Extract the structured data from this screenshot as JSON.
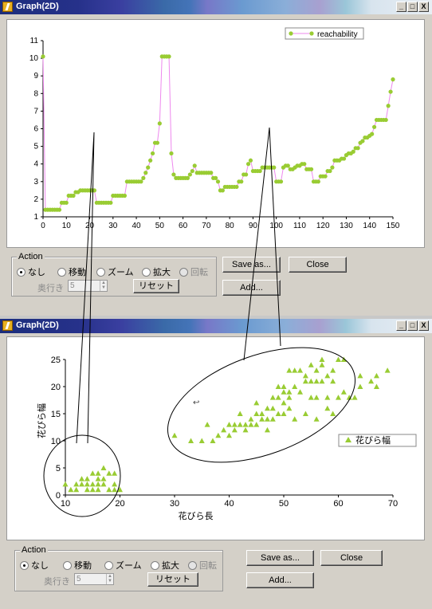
{
  "window1": {
    "title": "Graph(2D)",
    "title_buttons": [
      "_",
      "□",
      "X"
    ],
    "action": {
      "legend": "Action",
      "options": [
        "なし",
        "移動",
        "ズーム",
        "拡大",
        "回転"
      ],
      "selected": 0,
      "disabled": [
        4
      ],
      "depth_label": "奥行き",
      "depth_value": "5",
      "reset_label": "リセット"
    },
    "buttons": {
      "save": "Save as...",
      "close": "Close",
      "add": "Add..."
    }
  },
  "window2": {
    "title": "Graph(2D)",
    "title_buttons": [
      "_",
      "□",
      "X"
    ],
    "action": {
      "legend": "Action",
      "options": [
        "なし",
        "移動",
        "ズーム",
        "拡大",
        "回転"
      ],
      "selected": 0,
      "disabled": [
        4
      ],
      "depth_label": "奥行き",
      "depth_value": "5",
      "reset_label": "リセット"
    },
    "buttons": {
      "save": "Save as...",
      "close": "Close",
      "add": "Add..."
    }
  },
  "chart_data": [
    {
      "type": "line",
      "title": "",
      "xlabel": "",
      "ylabel": "",
      "xlim": [
        0,
        150
      ],
      "ylim": [
        1,
        11
      ],
      "xticks": [
        0,
        10,
        20,
        30,
        40,
        50,
        60,
        70,
        80,
        90,
        100,
        110,
        120,
        130,
        140,
        150
      ],
      "yticks": [
        1,
        2,
        3,
        4,
        5,
        6,
        7,
        8,
        9,
        10,
        11
      ],
      "legend": "top-right",
      "series": [
        {
          "name": "reachability",
          "color": "#99cc33",
          "line_color": "#ee88ee",
          "values": [
            10.1,
            1.4,
            1.4,
            1.4,
            1.4,
            1.4,
            1.4,
            1.4,
            1.8,
            1.8,
            1.8,
            2.2,
            2.2,
            2.2,
            2.4,
            2.4,
            2.5,
            2.5,
            2.5,
            2.5,
            2.5,
            2.5,
            2.5,
            1.8,
            1.8,
            1.8,
            1.8,
            1.8,
            1.8,
            1.8,
            2.2,
            2.2,
            2.2,
            2.2,
            2.2,
            2.2,
            3.0,
            3.0,
            3.0,
            3.0,
            3.0,
            3.0,
            3.0,
            3.2,
            3.5,
            3.8,
            4.2,
            4.6,
            5.2,
            5.2,
            6.3,
            10.1,
            10.1,
            10.1,
            10.1,
            4.6,
            3.4,
            3.2,
            3.2,
            3.2,
            3.2,
            3.2,
            3.2,
            3.4,
            3.6,
            3.9,
            3.5,
            3.5,
            3.5,
            3.5,
            3.5,
            3.5,
            3.5,
            3.2,
            3.2,
            3.0,
            2.5,
            2.5,
            2.7,
            2.7,
            2.7,
            2.7,
            2.7,
            2.7,
            3.0,
            3.0,
            3.4,
            3.4,
            4.0,
            4.2,
            3.6,
            3.6,
            3.6,
            3.6,
            3.8,
            3.8,
            3.8,
            3.8,
            3.8,
            3.8,
            3.0,
            3.0,
            3.0,
            3.8,
            3.9,
            3.9,
            3.7,
            3.7,
            3.8,
            3.9,
            3.9,
            4.0,
            4.0,
            3.7,
            3.7,
            3.7,
            3.0,
            3.0,
            3.0,
            3.3,
            3.3,
            3.3,
            3.6,
            3.6,
            3.8,
            4.2,
            4.2,
            4.2,
            4.3,
            4.3,
            4.5,
            4.6,
            4.6,
            4.7,
            4.9,
            4.9,
            5.2,
            5.3,
            5.5,
            5.5,
            5.6,
            5.7,
            6.1,
            6.5,
            6.5,
            6.5,
            6.5,
            6.5,
            7.3,
            8.1,
            8.8
          ]
        }
      ]
    },
    {
      "type": "scatter",
      "title": "",
      "xlabel": "花びら長",
      "ylabel": "花びら幅",
      "xlim": [
        10,
        70
      ],
      "ylim": [
        0,
        25
      ],
      "xticks": [
        10,
        20,
        30,
        40,
        50,
        60,
        70
      ],
      "yticks": [
        0,
        5,
        10,
        15,
        20,
        25
      ],
      "legend": "right",
      "series": [
        {
          "name": "花びら幅",
          "color": "#99cc33",
          "points": [
            [
              10,
              2
            ],
            [
              11,
              1
            ],
            [
              12,
              2
            ],
            [
              12,
              1
            ],
            [
              13,
              2
            ],
            [
              13,
              3
            ],
            [
              14,
              2
            ],
            [
              14,
              1
            ],
            [
              14,
              3
            ],
            [
              15,
              2
            ],
            [
              15,
              4
            ],
            [
              15,
              1
            ],
            [
              16,
              2
            ],
            [
              16,
              3
            ],
            [
              16,
              4
            ],
            [
              16,
              1
            ],
            [
              17,
              5
            ],
            [
              17,
              3
            ],
            [
              17,
              2
            ],
            [
              18,
              4
            ],
            [
              18,
              1
            ],
            [
              19,
              4
            ],
            [
              19,
              2
            ],
            [
              19,
              1
            ],
            [
              20,
              1
            ],
            [
              30,
              11
            ],
            [
              33,
              10
            ],
            [
              35,
              10
            ],
            [
              36,
              13
            ],
            [
              37,
              10
            ],
            [
              38,
              11
            ],
            [
              39,
              12
            ],
            [
              40,
              11
            ],
            [
              40,
              13
            ],
            [
              41,
              12
            ],
            [
              41,
              13
            ],
            [
              42,
              13
            ],
            [
              42,
              15
            ],
            [
              43,
              13
            ],
            [
              43,
              12
            ],
            [
              44,
              14
            ],
            [
              44,
              13
            ],
            [
              45,
              13
            ],
            [
              45,
              15
            ],
            [
              45,
              17
            ],
            [
              46,
              15
            ],
            [
              46,
              14
            ],
            [
              47,
              14
            ],
            [
              47,
              16
            ],
            [
              47,
              12
            ],
            [
              48,
              18
            ],
            [
              48,
              14
            ],
            [
              48,
              16
            ],
            [
              49,
              15
            ],
            [
              49,
              18
            ],
            [
              49,
              20
            ],
            [
              50,
              15
            ],
            [
              50,
              17
            ],
            [
              50,
              19
            ],
            [
              50,
              20
            ],
            [
              51,
              19
            ],
            [
              51,
              18
            ],
            [
              51,
              23
            ],
            [
              51,
              16
            ],
            [
              52,
              14
            ],
            [
              52,
              20
            ],
            [
              52,
              23
            ],
            [
              53,
              19
            ],
            [
              53,
              23
            ],
            [
              54,
              21
            ],
            [
              54,
              15
            ],
            [
              54,
              22
            ],
            [
              55,
              21
            ],
            [
              55,
              18
            ],
            [
              55,
              24
            ],
            [
              56,
              21
            ],
            [
              56,
              18
            ],
            [
              56,
              23
            ],
            [
              56,
              14
            ],
            [
              57,
              21
            ],
            [
              57,
              25
            ],
            [
              57,
              24
            ],
            [
              58,
              22
            ],
            [
              58,
              18
            ],
            [
              58,
              16
            ],
            [
              59,
              23
            ],
            [
              59,
              21
            ],
            [
              59,
              15
            ],
            [
              60,
              25
            ],
            [
              60,
              18
            ],
            [
              61,
              19
            ],
            [
              61,
              25
            ],
            [
              62,
              18
            ],
            [
              63,
              18
            ],
            [
              64,
              20
            ],
            [
              64,
              22
            ],
            [
              66,
              21
            ],
            [
              67,
              20
            ],
            [
              67,
              22
            ],
            [
              69,
              23
            ]
          ]
        }
      ],
      "annotation": "↩"
    }
  ]
}
